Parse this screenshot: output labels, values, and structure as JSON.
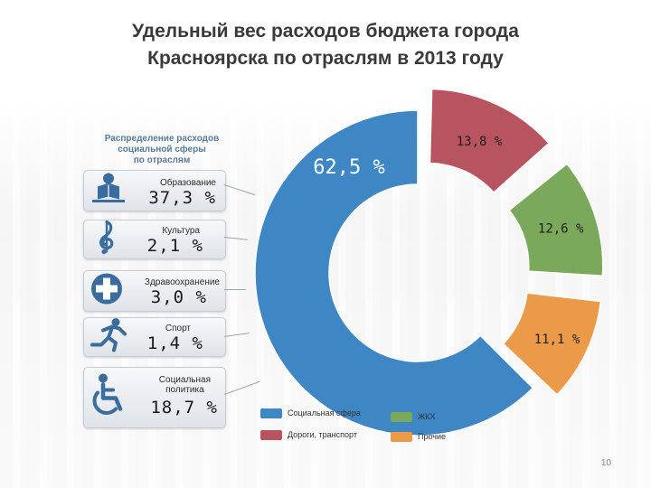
{
  "title": {
    "line1": "Удельный вес расходов бюджета города",
    "line2": "Красноярска по отраслям в 2013 году"
  },
  "social_panel": {
    "title_lines": [
      "Распределение расходов",
      "социальной сферы",
      "по отраслям"
    ],
    "items": [
      {
        "label": "Образование",
        "value": "37,3 %",
        "icon": "student-reading-icon"
      },
      {
        "label": "Культура",
        "value": "2,1 %",
        "icon": "treble-clef-icon"
      },
      {
        "label": "Здравоохранение",
        "value": "3,0 %",
        "icon": "medical-cross-icon"
      },
      {
        "label": "Спорт",
        "value": "1,4 %",
        "icon": "runner-icon"
      },
      {
        "label": "Социальная политика",
        "label_lines": [
          "Социальная",
          "политика"
        ],
        "value": "18,7 %",
        "icon": "wheelchair-icon"
      }
    ]
  },
  "page_number": "10",
  "colors": {
    "social": "#3f86c5",
    "roads": "#b8545f",
    "housing": "#7aa95c",
    "other": "#eb9a4a",
    "title": "#3a3a3a",
    "icon_blue": "#3b6c9e"
  },
  "chart_data": {
    "type": "pie",
    "variant": "exploded donut",
    "title": "Удельный вес расходов бюджета города Красноярска по отраслям в 2013 году",
    "categories": [
      "Социальная сфера",
      "Дороги, транспорт",
      "ЖКХ",
      "Прочие"
    ],
    "values": [
      62.5,
      13.8,
      12.6,
      11.1
    ],
    "value_labels": [
      "62,5 %",
      "13,8 %",
      "12,6 %",
      "11,1 %"
    ],
    "colors": [
      "#3f86c5",
      "#b8545f",
      "#7aa95c",
      "#eb9a4a"
    ],
    "legend": {
      "placement": "bottom",
      "entries": [
        "Социальная сфера",
        "ЖКХ",
        "Дороги, транспорт",
        "Прочие"
      ]
    }
  }
}
